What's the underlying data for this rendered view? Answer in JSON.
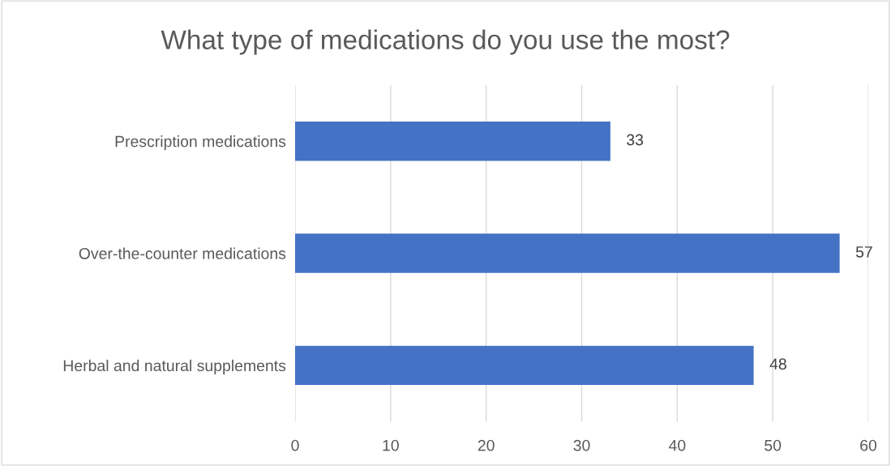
{
  "chart_data": {
    "type": "bar",
    "orientation": "horizontal",
    "title": "What type of medications do you use the most?",
    "categories": [
      "Prescription medications",
      "Over-the-counter medications",
      "Herbal and natural supplements"
    ],
    "values": [
      33,
      57,
      48
    ],
    "color": "#4472c4",
    "xlim": [
      0,
      60
    ],
    "xticks": [
      0,
      10,
      20,
      30,
      40,
      50,
      60
    ],
    "grid": "x",
    "data_labels": true
  }
}
